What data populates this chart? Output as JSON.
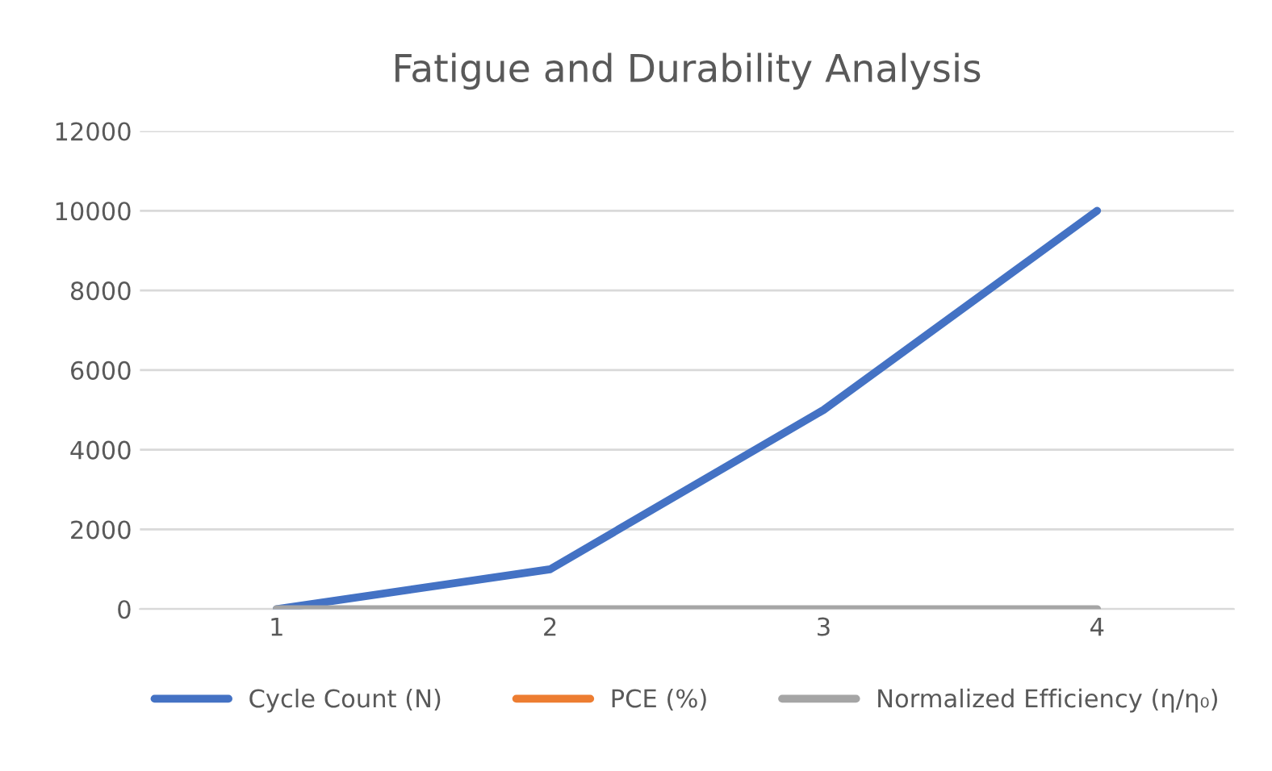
{
  "chart_data": {
    "type": "line",
    "title": "Fatigue and Durability Analysis",
    "categories": [
      "1",
      "2",
      "3",
      "4"
    ],
    "series": [
      {
        "name": "Cycle Count (N)",
        "color": "#4472c4",
        "values": [
          0,
          1000,
          5000,
          10000
        ]
      },
      {
        "name": "PCE (%)",
        "color": "#ed7d31",
        "values": [
          null,
          null,
          null,
          null
        ]
      },
      {
        "name": "Normalized Efficiency (η/η₀)",
        "color": "#a5a5a5",
        "values": [
          0,
          0,
          0,
          0
        ]
      }
    ],
    "ylim": [
      0,
      12000
    ],
    "yticks": [
      0,
      2000,
      4000,
      6000,
      8000,
      10000,
      12000
    ],
    "grid": "y",
    "legend": "bottom",
    "marker": "none",
    "line_style": "solid"
  }
}
